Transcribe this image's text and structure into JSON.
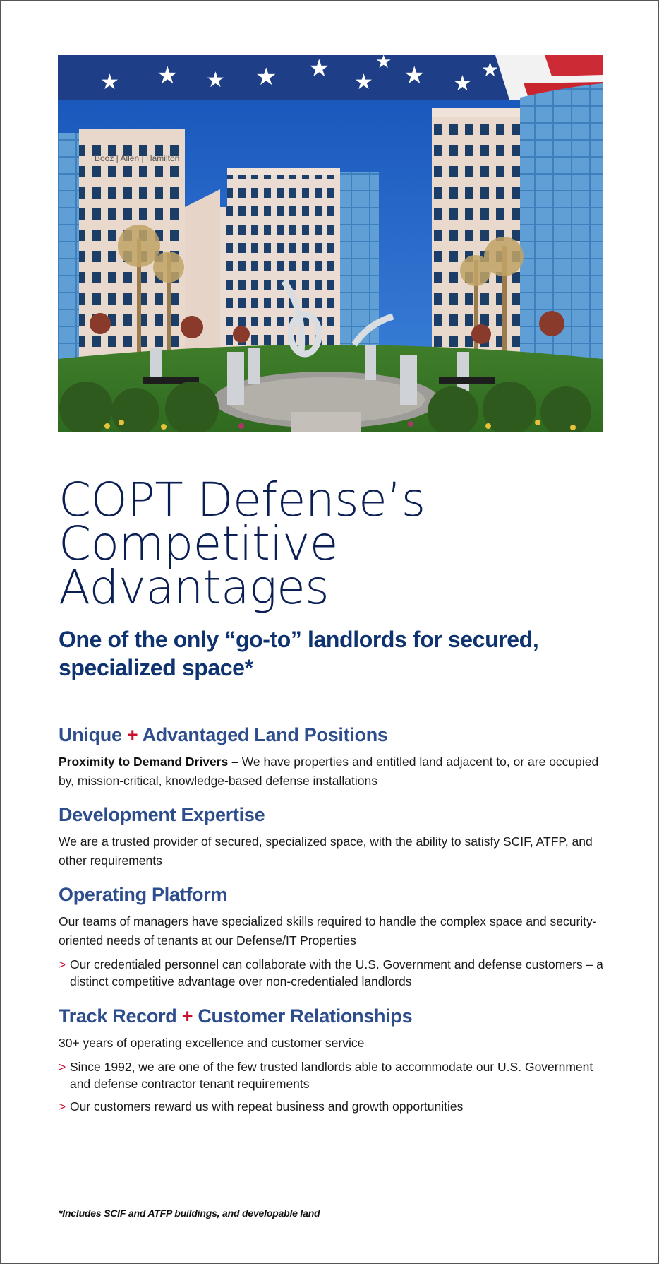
{
  "title": {
    "line1": "COPT Defense’s",
    "line2": "Competitive",
    "line3": "Advantages"
  },
  "subtitle": "One of the only “go-to” landlords for secured, specialized space*",
  "photo": {
    "building_sign": "Booz | Allen | Hamilton"
  },
  "sections": [
    {
      "head_a": "Unique",
      "plus": "+",
      "head_b": "Advantaged Land Positions",
      "lead_bold": "Proximity to Demand Drivers –",
      "text": "We have properties and entitled land adjacent to, or are occupied by, mission-critical, knowledge-based defense installations"
    },
    {
      "head": "Development Expertise",
      "text": "We are a trusted provider of secured, specialized space, with the ability to satisfy SCIF, ATFP, and other requirements"
    },
    {
      "head": "Operating Platform",
      "text": "Our teams of managers have specialized skills required to handle the complex space and security-oriented needs of tenants at our Defense/IT Properties",
      "bullets": [
        "Our credentialed personnel can collaborate with the U.S. Government and defense customers – a distinct competitive advantage over non-credentialed landlords"
      ]
    },
    {
      "head_a": "Track Record",
      "plus": "+",
      "head_b": "Customer Relationships",
      "text": "30+ years of operating excellence and customer service",
      "bullets": [
        "Since 1992, we are one of the few trusted landlords able to accommodate our U.S. Government and defense contractor tenant requirements",
        "Our customers reward us with repeat business and growth opportunities"
      ]
    }
  ],
  "bullet_marker": ">",
  "footnote": "*Includes SCIF and ATFP buildings, and developable land",
  "colors": {
    "title": "#0b1f55",
    "subtitle": "#0f3370",
    "section_head": "#2e4d8c",
    "accent_red": "#c8102e",
    "sky": "#1f63c2"
  }
}
